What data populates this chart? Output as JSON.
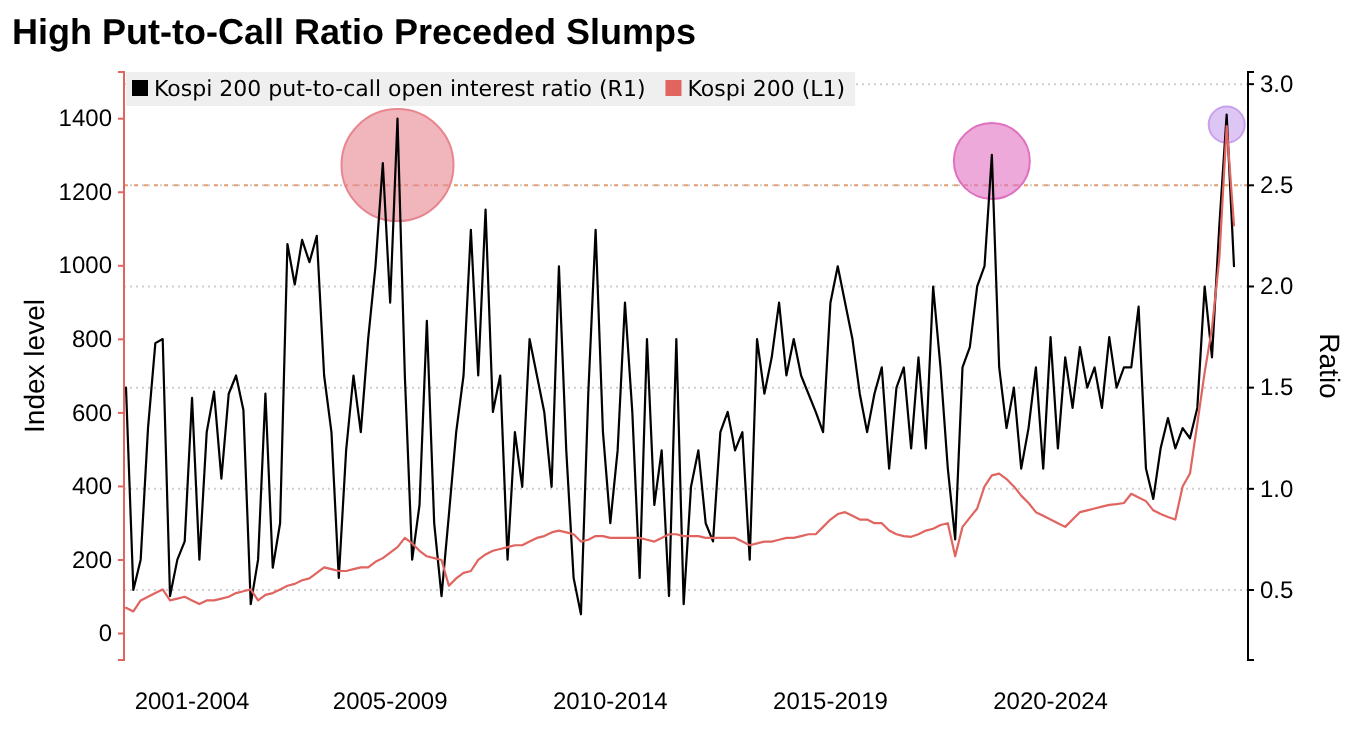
{
  "chart_data": {
    "type": "line",
    "title": "High Put-to-Call Ratio Preceded Slumps",
    "ylabel": "Index level",
    "y2label": "Ratio",
    "categories": [
      null,
      null,
      null,
      null,
      null,
      null,
      null,
      null,
      null,
      "2001-2004",
      null,
      null,
      null,
      null,
      null,
      null,
      null,
      null,
      null,
      null,
      null,
      null,
      null,
      null,
      null,
      null,
      null,
      null,
      null,
      null,
      null,
      null,
      null,
      null,
      null,
      null,
      "2005-2009",
      null,
      null,
      null,
      null,
      null,
      null,
      null,
      null,
      null,
      null,
      null,
      null,
      null,
      null,
      null,
      null,
      null,
      null,
      null,
      null,
      null,
      null,
      null,
      null,
      null,
      null,
      null,
      null,
      null,
      "2010-2014",
      null,
      null,
      null,
      null,
      null,
      null,
      null,
      null,
      null,
      null,
      null,
      null,
      null,
      null,
      null,
      null,
      null,
      null,
      null,
      null,
      null,
      null,
      null,
      null,
      null,
      null,
      null,
      null,
      null,
      "2015-2019",
      null,
      null,
      null,
      null,
      null,
      null,
      null,
      null,
      null,
      null,
      null,
      null,
      null,
      null,
      null,
      null,
      null,
      null,
      null,
      null,
      null,
      null,
      null,
      null,
      null,
      null,
      null,
      null,
      null,
      "2020-2024",
      null,
      null,
      null,
      null,
      null,
      null,
      null,
      null,
      null,
      null,
      null,
      null,
      null,
      null,
      null,
      null,
      null,
      null,
      null,
      null,
      null,
      null,
      null,
      null,
      null
    ],
    "ylim": [
      -72,
      1527
    ],
    "yticks": [
      0,
      200,
      400,
      600,
      800,
      1000,
      1200,
      1400
    ],
    "y2lim": [
      0.154,
      3.06
    ],
    "y2ticks": [
      {
        "value": 0.5,
        "label": "0.5"
      },
      {
        "value": 1,
        "label": "1.0"
      },
      {
        "value": 1.5,
        "label": "1.5"
      },
      {
        "value": 2,
        "label": "2.0"
      },
      {
        "value": 2.5,
        "label": "2.5"
      },
      {
        "value": 3,
        "label": "3.0"
      }
    ],
    "grid": "y",
    "legend": "top left",
    "line_style": "solid",
    "ref_lines": [
      {
        "axis": "y2",
        "value": 2.5,
        "label": null,
        "color": "#e8a070",
        "line_style": "dotted"
      }
    ],
    "series": [
      {
        "name": "Kospi 200 put-to-call open interest ratio (R1)",
        "color": "#000000",
        "axis": "y2",
        "values": [
          1.5,
          0.5,
          0.65,
          1.3,
          1.72,
          1.74,
          0.47,
          0.65,
          0.74,
          1.45,
          0.65,
          1.28,
          1.48,
          1.05,
          1.47,
          1.56,
          1.39,
          0.43,
          0.65,
          1.47,
          0.61,
          0.83,
          2.21,
          2.01,
          2.23,
          2.12,
          2.25,
          1.56,
          1.28,
          0.56,
          1.19,
          1.56,
          1.28,
          1.74,
          2.1,
          2.61,
          1.92,
          2.83,
          1.56,
          0.65,
          0.92,
          1.83,
          0.83,
          0.47,
          0.87,
          1.28,
          1.56,
          2.28,
          1.56,
          2.38,
          1.38,
          1.56,
          0.65,
          1.28,
          1.01,
          1.74,
          1.56,
          1.38,
          1.01,
          2.1,
          1.19,
          0.56,
          0.38,
          1.47,
          2.28,
          1.28,
          0.83,
          1.19,
          1.92,
          1.38,
          0.56,
          1.74,
          0.92,
          1.19,
          0.47,
          1.74,
          0.43,
          1.01,
          1.19,
          0.83,
          0.74,
          1.28,
          1.38,
          1.19,
          1.28,
          0.65,
          1.74,
          1.47,
          1.65,
          1.92,
          1.56,
          1.74,
          1.56,
          1.47,
          1.38,
          1.28,
          1.92,
          2.1,
          1.92,
          1.74,
          1.47,
          1.28,
          1.47,
          1.6,
          1.1,
          1.5,
          1.6,
          1.2,
          1.65,
          1.2,
          2.0,
          1.6,
          1.1,
          0.75,
          1.6,
          1.7,
          2.0,
          2.1,
          2.65,
          1.6,
          1.3,
          1.5,
          1.1,
          1.3,
          1.6,
          1.1,
          1.75,
          1.2,
          1.65,
          1.4,
          1.7,
          1.5,
          1.6,
          1.4,
          1.75,
          1.5,
          1.6,
          1.6,
          1.9,
          1.1,
          0.95,
          1.2,
          1.35,
          1.2,
          1.3,
          1.25,
          1.4,
          2.0,
          1.65,
          2.3,
          2.85,
          2.1
        ]
      },
      {
        "name": "Kospi 200 (L1)",
        "color": "#e0645f",
        "values": [
          70,
          60,
          90,
          100,
          110,
          120,
          90,
          95,
          100,
          90,
          80,
          90,
          90,
          95,
          100,
          110,
          115,
          120,
          90,
          105,
          110,
          120,
          130,
          135,
          145,
          150,
          165,
          180,
          175,
          170,
          170,
          175,
          180,
          180,
          195,
          205,
          220,
          235,
          260,
          245,
          225,
          210,
          205,
          200,
          130,
          150,
          165,
          170,
          200,
          215,
          225,
          230,
          235,
          240,
          240,
          250,
          260,
          265,
          275,
          280,
          275,
          270,
          250,
          255,
          265,
          265,
          260,
          260,
          260,
          260,
          260,
          255,
          250,
          260,
          270,
          270,
          265,
          265,
          265,
          260,
          260,
          260,
          260,
          260,
          250,
          240,
          245,
          250,
          250,
          255,
          260,
          260,
          265,
          270,
          270,
          290,
          310,
          325,
          330,
          320,
          310,
          310,
          300,
          300,
          280,
          270,
          265,
          263,
          270,
          280,
          285,
          295,
          300,
          210,
          290,
          315,
          340,
          400,
          430,
          435,
          420,
          400,
          375,
          355,
          330,
          320,
          310,
          300,
          290,
          310,
          330,
          335,
          340,
          345,
          350,
          352,
          355,
          380,
          370,
          360,
          335,
          325,
          317,
          310,
          400,
          435,
          570,
          710,
          830,
          1020,
          1380,
          1110
        ]
      }
    ]
  }
}
